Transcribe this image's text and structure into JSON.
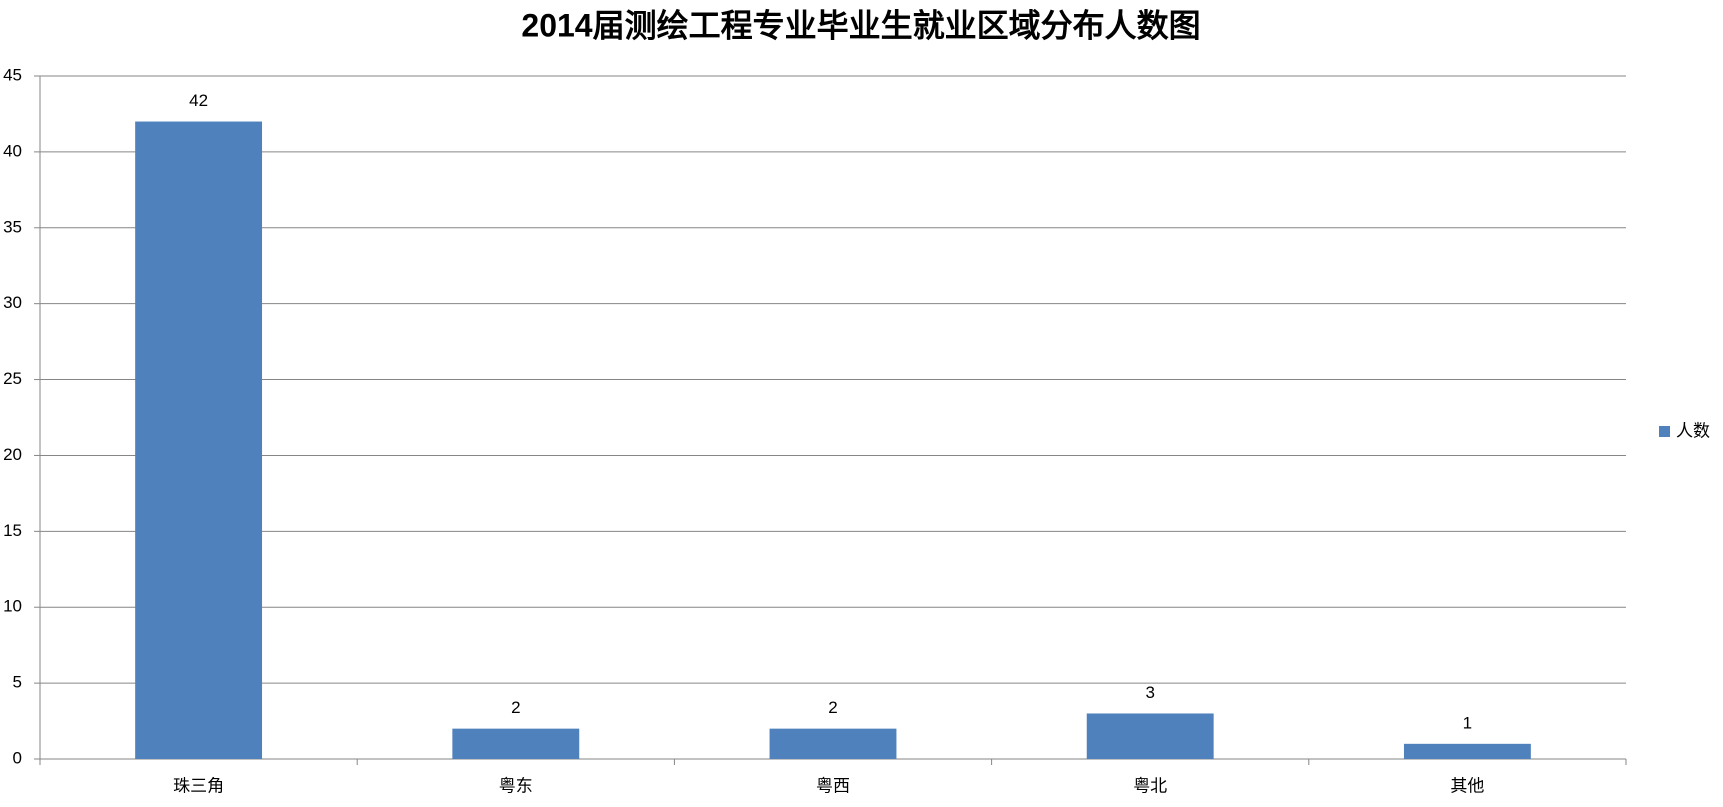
{
  "chart_data": {
    "type": "bar",
    "title": "2014届测绘工程专业毕业生就业区域分布人数图",
    "categories": [
      "珠三角",
      "粤东",
      "粤西",
      "粤北",
      "其他"
    ],
    "series": [
      {
        "name": "人数",
        "color": "#4f81bd",
        "values": [
          42,
          2,
          2,
          3,
          1
        ]
      }
    ],
    "ylim": [
      0,
      45
    ],
    "yticks": [
      0,
      5,
      10,
      15,
      20,
      25,
      30,
      35,
      40,
      45
    ],
    "grid": true,
    "legend": "right"
  }
}
